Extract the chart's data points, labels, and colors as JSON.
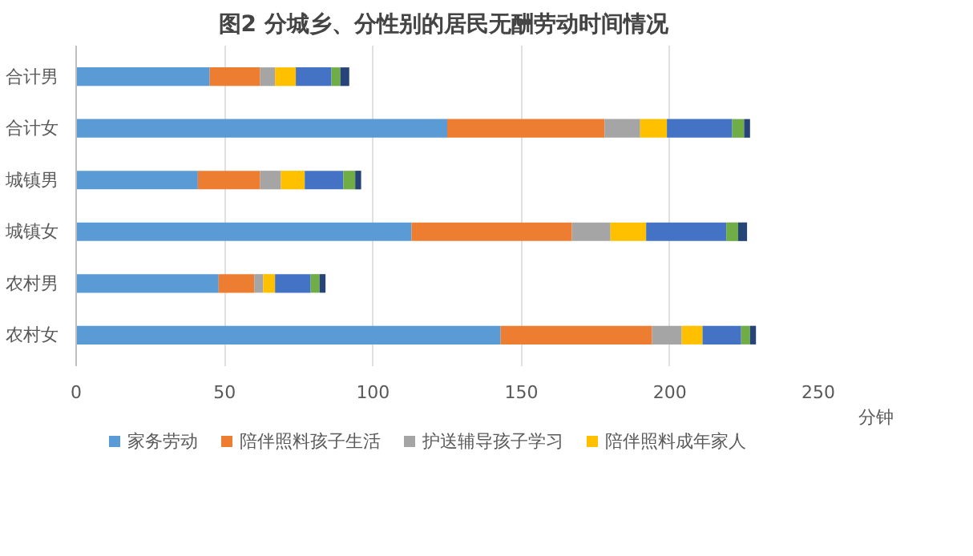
{
  "chart_data": {
    "type": "bar",
    "orientation": "horizontal",
    "stacked": true,
    "title": "图2  分城乡、分性别的居民无酬劳动时间情况",
    "xlabel": "分钟",
    "categories": [
      "合计男",
      "合计女",
      "城镇男",
      "城镇女",
      "农村男",
      "农村女"
    ],
    "series": [
      {
        "name": "家务劳动",
        "color": "#5b9bd5",
        "values": [
          45,
          125,
          41,
          113,
          48,
          143
        ]
      },
      {
        "name": "陪伴照料孩子生活",
        "color": "#ed7d31",
        "values": [
          17,
          53,
          21,
          54,
          12,
          51
        ]
      },
      {
        "name": "护送辅导孩子学习",
        "color": "#a5a5a5",
        "values": [
          5,
          12,
          7,
          13,
          3,
          10
        ]
      },
      {
        "name": "陪伴照料成年家人",
        "color": "#ffc000",
        "values": [
          7,
          9,
          8,
          12,
          4,
          7
        ]
      },
      {
        "color": "#4472c4",
        "values": [
          12,
          22,
          13,
          27,
          12,
          13
        ]
      },
      {
        "color": "#70ad47",
        "values": [
          3,
          4,
          4,
          4,
          3,
          3
        ]
      },
      {
        "color": "#264478",
        "values": [
          3,
          2,
          2,
          3,
          2,
          2
        ]
      }
    ],
    "xlim": [
      0,
      250
    ],
    "xticks": [
      0,
      50,
      100,
      150,
      200,
      250
    ],
    "grid": "x",
    "legend": "bottom"
  }
}
